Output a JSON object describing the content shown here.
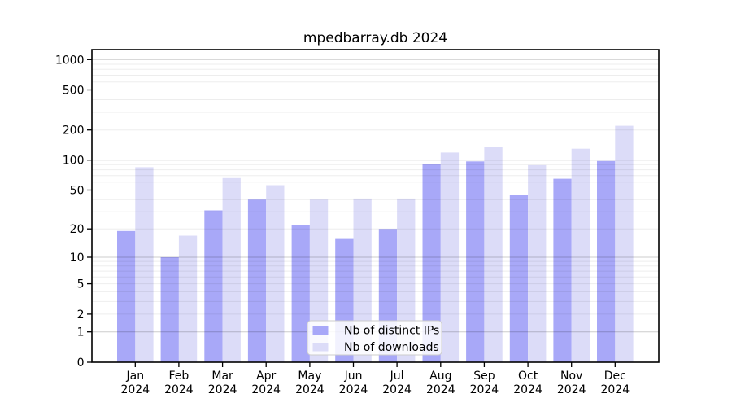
{
  "chart_data": {
    "type": "bar",
    "title": "mpedbarray.db 2024",
    "categories": [
      "Jan",
      "Feb",
      "Mar",
      "Apr",
      "May",
      "Jun",
      "Jul",
      "Aug",
      "Sep",
      "Oct",
      "Nov",
      "Dec"
    ],
    "year_label": "2024",
    "series": [
      {
        "name": "Nb of distinct IPs",
        "color": "#a8a8f8",
        "values": [
          19,
          10,
          31,
          40,
          22,
          16,
          20,
          92,
          97,
          45,
          65,
          98
        ]
      },
      {
        "name": "Nb of downloads",
        "color": "#dcdcf8",
        "values": [
          85,
          17,
          66,
          56,
          40,
          41,
          41,
          119,
          135,
          89,
          130,
          220
        ]
      }
    ],
    "yscale": "log1p",
    "yticks": [
      0,
      1,
      2,
      5,
      10,
      20,
      50,
      100,
      200,
      500,
      1000
    ],
    "ylim": [
      0,
      1200
    ],
    "grid": true,
    "grid_major_at": [
      1,
      10,
      100,
      1000
    ],
    "legend_position": "lower center",
    "xlabel": "",
    "ylabel": ""
  }
}
